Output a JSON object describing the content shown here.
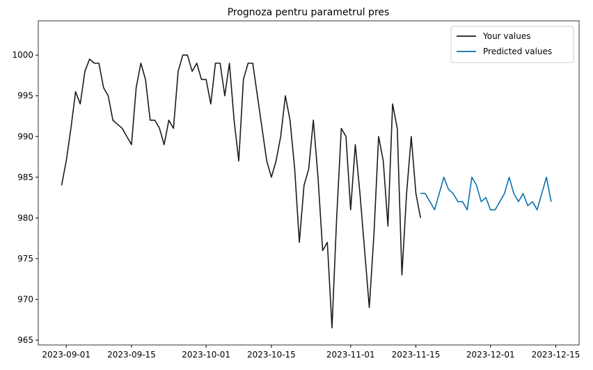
{
  "chart_data": {
    "type": "line",
    "title": "Prognoza pentru parametrul pres",
    "xlim": [
      "2023-08-26",
      "2023-12-20"
    ],
    "xticks": [
      "2023-09-01",
      "2023-09-15",
      "2023-10-01",
      "2023-10-15",
      "2023-11-01",
      "2023-11-15",
      "2023-12-01",
      "2023-12-15"
    ],
    "ylim": [
      964.4,
      1004.2
    ],
    "yticks": [
      965,
      970,
      975,
      980,
      985,
      990,
      995,
      1000
    ],
    "legend": "upper right",
    "series": [
      {
        "name": "Your values",
        "color": "#1a1a1a",
        "x": [
          "2023-08-31",
          "2023-09-01",
          "2023-09-02",
          "2023-09-03",
          "2023-09-04",
          "2023-09-05",
          "2023-09-06",
          "2023-09-07",
          "2023-09-08",
          "2023-09-09",
          "2023-09-10",
          "2023-09-11",
          "2023-09-12",
          "2023-09-13",
          "2023-09-14",
          "2023-09-15",
          "2023-09-16",
          "2023-09-17",
          "2023-09-18",
          "2023-09-19",
          "2023-09-20",
          "2023-09-21",
          "2023-09-22",
          "2023-09-23",
          "2023-09-24",
          "2023-09-25",
          "2023-09-26",
          "2023-09-27",
          "2023-09-28",
          "2023-09-29",
          "2023-09-30",
          "2023-10-01",
          "2023-10-02",
          "2023-10-03",
          "2023-10-04",
          "2023-10-05",
          "2023-10-06",
          "2023-10-07",
          "2023-10-08",
          "2023-10-09",
          "2023-10-10",
          "2023-10-11",
          "2023-10-12",
          "2023-10-13",
          "2023-10-14",
          "2023-10-15",
          "2023-10-16",
          "2023-10-17",
          "2023-10-18",
          "2023-10-19",
          "2023-10-20",
          "2023-10-21",
          "2023-10-22",
          "2023-10-23",
          "2023-10-24",
          "2023-10-25",
          "2023-10-26",
          "2023-10-27",
          "2023-10-28",
          "2023-10-29",
          "2023-10-30",
          "2023-10-31",
          "2023-11-01",
          "2023-11-02",
          "2023-11-03",
          "2023-11-04",
          "2023-11-05",
          "2023-11-06",
          "2023-11-07",
          "2023-11-08",
          "2023-11-09",
          "2023-11-10",
          "2023-11-11",
          "2023-11-12",
          "2023-11-13",
          "2023-11-14",
          "2023-11-15",
          "2023-11-16"
        ],
        "values": [
          984,
          987,
          991,
          995.5,
          994,
          998,
          999.5,
          999,
          999,
          996,
          995,
          992,
          991.5,
          991,
          990,
          989,
          996,
          999,
          997,
          992,
          992,
          991,
          989,
          992,
          991,
          998,
          1000,
          1000,
          998,
          999,
          997,
          997,
          994,
          999,
          999,
          995,
          999,
          992,
          987,
          997,
          999,
          999,
          995,
          991,
          987,
          985,
          987,
          990,
          995,
          992,
          986,
          977,
          984,
          986,
          992,
          985,
          976,
          977,
          966.5,
          980,
          991,
          990,
          981,
          989,
          983,
          976,
          969,
          978,
          990,
          987,
          979,
          994,
          991,
          973,
          983,
          990,
          983,
          980
        ]
      },
      {
        "name": "Predicted values",
        "color": "#0b6fae",
        "x": [
          "2023-11-16",
          "2023-11-17",
          "2023-11-18",
          "2023-11-19",
          "2023-11-20",
          "2023-11-21",
          "2023-11-22",
          "2023-11-23",
          "2023-11-24",
          "2023-11-25",
          "2023-11-26",
          "2023-11-27",
          "2023-11-28",
          "2023-11-29",
          "2023-11-30",
          "2023-12-01",
          "2023-12-02",
          "2023-12-03",
          "2023-12-04",
          "2023-12-05",
          "2023-12-06",
          "2023-12-07",
          "2023-12-08",
          "2023-12-09",
          "2023-12-10",
          "2023-12-11",
          "2023-12-12",
          "2023-12-13",
          "2023-12-14"
        ],
        "values": [
          983,
          983,
          982,
          981,
          983,
          985,
          983.5,
          983,
          982,
          982,
          981,
          985,
          984,
          982,
          982.5,
          981,
          981,
          982,
          983,
          985,
          983,
          982,
          983,
          981.5,
          982,
          981,
          983,
          985,
          982
        ]
      }
    ]
  }
}
